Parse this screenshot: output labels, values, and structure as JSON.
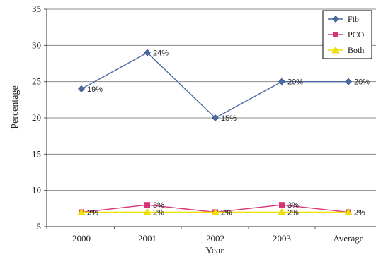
{
  "chart_data": {
    "type": "line",
    "title": "",
    "xlabel": "Year",
    "ylabel": "Percentage",
    "categories": [
      "2000",
      "2001",
      "2002",
      "2003",
      "Average"
    ],
    "ylim": [
      5,
      35
    ],
    "yticks": [
      5,
      10,
      15,
      20,
      25,
      30,
      35
    ],
    "grid": true,
    "legend": "top-right",
    "series": [
      {
        "name": "Fib",
        "values": [
          24,
          29,
          20,
          25,
          25
        ],
        "labels": [
          "19%",
          "24%",
          "15%",
          "20%",
          "20%"
        ],
        "color": "#4a6aa5",
        "marker": "diamond"
      },
      {
        "name": "PCO",
        "values": [
          7,
          8,
          7,
          8,
          7
        ],
        "labels": [
          "2%",
          "3%",
          "2%",
          "3%",
          "2%"
        ],
        "color": "#d6337a",
        "marker": "square"
      },
      {
        "name": "Both",
        "values": [
          7,
          7,
          7,
          7,
          7
        ],
        "labels": [
          "2%",
          "2%",
          "2%",
          "2%",
          "2%"
        ],
        "color": "#f2e200",
        "marker": "triangle"
      }
    ]
  }
}
